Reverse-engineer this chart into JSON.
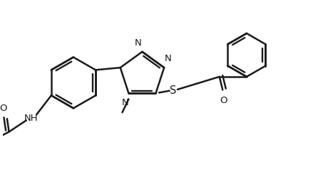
{
  "bg_color": "#ffffff",
  "line_color": "#1a1a1a",
  "line_width": 1.8,
  "font_size": 9.5,
  "figsize": [
    4.53,
    2.66
  ],
  "dpi": 100,
  "xlim": [
    0,
    10
  ],
  "ylim": [
    0,
    5.86
  ]
}
